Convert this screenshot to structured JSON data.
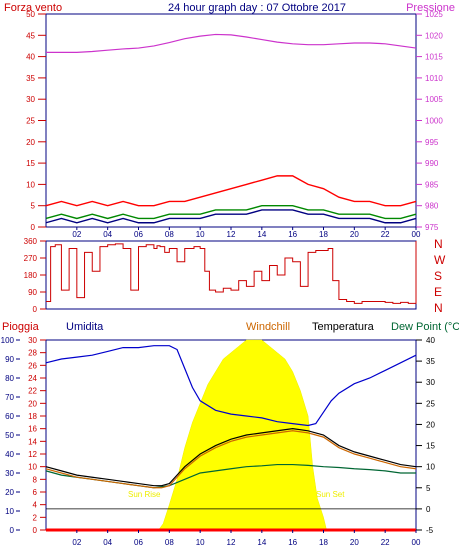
{
  "chart_data": [
    {
      "type": "line",
      "title": "24 hour graph day : 07 Ottobre 2017",
      "left_label": "Forza vento",
      "right_label": "Pressione",
      "yleft_ticks": [
        "0",
        "5",
        "10",
        "15",
        "20",
        "25",
        "30",
        "35",
        "40",
        "45",
        "50"
      ],
      "yright_ticks": [
        "975",
        "980",
        "985",
        "990",
        "995",
        "1000",
        "1005",
        "1010",
        "1015",
        "1020",
        "1025"
      ],
      "xticks": [
        "02",
        "04",
        "06",
        "08",
        "10",
        "12",
        "14",
        "16",
        "18",
        "20",
        "22",
        "00"
      ],
      "ylim_left": [
        0,
        50
      ],
      "ylim_right": [
        975,
        1025
      ],
      "series": [
        {
          "name": "Pressione",
          "color": "#cc33cc",
          "x": [
            0,
            1,
            2,
            3,
            4,
            5,
            6,
            7,
            8,
            9,
            10,
            11,
            12,
            13,
            14,
            15,
            16,
            17,
            18,
            19,
            20,
            21,
            22,
            23,
            24
          ],
          "values": [
            1016,
            1016,
            1016,
            1016.2,
            1016.5,
            1016.8,
            1017,
            1017.5,
            1018.3,
            1019.2,
            1019.8,
            1020.2,
            1020.1,
            1019.6,
            1019,
            1018.4,
            1018,
            1017.8,
            1017.8,
            1018,
            1018.2,
            1018.2,
            1018,
            1017.5,
            1017
          ]
        },
        {
          "name": "",
          "color": "#ff0000",
          "x": [
            0,
            1,
            2,
            3,
            4,
            5,
            6,
            7,
            8,
            9,
            10,
            11,
            12,
            13,
            14,
            15,
            16,
            17,
            18,
            19,
            20,
            21,
            22,
            23,
            24
          ],
          "values": [
            5,
            6,
            5,
            6,
            5,
            6,
            5,
            5,
            6,
            6,
            7,
            8,
            9,
            10,
            11,
            12,
            12,
            10,
            9,
            7,
            6,
            6,
            5,
            5,
            6
          ]
        },
        {
          "name": "",
          "color": "#008800",
          "x": [
            0,
            1,
            2,
            3,
            4,
            5,
            6,
            7,
            8,
            9,
            10,
            11,
            12,
            13,
            14,
            15,
            16,
            17,
            18,
            19,
            20,
            21,
            22,
            23,
            24
          ],
          "values": [
            2,
            3,
            2,
            3,
            2,
            3,
            2,
            2,
            3,
            3,
            3,
            4,
            4,
            4,
            5,
            5,
            5,
            4,
            4,
            3,
            3,
            3,
            2,
            2,
            3
          ]
        },
        {
          "name": "",
          "color": "#000080",
          "x": [
            0,
            1,
            2,
            3,
            4,
            5,
            6,
            7,
            8,
            9,
            10,
            11,
            12,
            13,
            14,
            15,
            16,
            17,
            18,
            19,
            20,
            21,
            22,
            23,
            24
          ],
          "values": [
            1,
            2,
            1,
            2,
            1,
            2,
            1,
            1,
            2,
            2,
            2,
            3,
            3,
            3,
            4,
            4,
            4,
            3,
            3,
            2,
            2,
            2,
            1,
            1,
            2
          ]
        }
      ]
    },
    {
      "type": "line",
      "yticks": [
        "0",
        "90",
        "180",
        "270",
        "360"
      ],
      "ylim": [
        0,
        360
      ],
      "xticks": [
        "02",
        "04",
        "06",
        "08",
        "10",
        "12",
        "14",
        "16",
        "18",
        "20",
        "22",
        "00"
      ],
      "compass": [
        "N",
        "W",
        "S",
        "E",
        "N"
      ],
      "series": [
        {
          "name": "",
          "color": "#cc0000",
          "x": [
            0,
            0.3,
            0.6,
            1,
            1.5,
            2,
            2.5,
            3,
            3.5,
            4,
            4.5,
            5,
            5.5,
            6,
            6.5,
            7,
            7.2,
            7.4,
            7.7,
            8,
            8.5,
            9,
            9.3,
            9.6,
            10,
            10.3,
            10.6,
            11,
            11.5,
            12,
            12.5,
            13,
            13.5,
            14,
            14.5,
            15,
            15.5,
            16,
            16.5,
            17,
            17.5,
            18,
            18.3,
            18.6,
            19,
            19.5,
            20,
            20.5,
            21,
            21.5,
            22,
            22.5,
            23,
            23.5,
            24
          ],
          "values": [
            40,
            330,
            340,
            100,
            320,
            60,
            300,
            200,
            330,
            340,
            345,
            320,
            100,
            330,
            340,
            320,
            335,
            330,
            300,
            320,
            250,
            320,
            320,
            330,
            320,
            200,
            100,
            90,
            110,
            100,
            150,
            120,
            200,
            150,
            230,
            180,
            270,
            250,
            120,
            300,
            310,
            310,
            320,
            150,
            50,
            40,
            30,
            40,
            40,
            40,
            35,
            30,
            35,
            30,
            360
          ]
        }
      ]
    },
    {
      "type": "line",
      "legend": [
        "Pioggia",
        "Umidita",
        "Windchill",
        "Temperatura",
        "Dew Point (°C"
      ],
      "y1_ticks": [
        "0",
        "10",
        "20",
        "30",
        "40",
        "50",
        "60",
        "70",
        "80",
        "90",
        "100"
      ],
      "y2_ticks": [
        "0",
        "2",
        "4",
        "6",
        "8",
        "10",
        "12",
        "14",
        "16",
        "18",
        "20",
        "22",
        "24",
        "26",
        "28",
        "30"
      ],
      "yright_ticks": [
        "-5",
        "0",
        "5",
        "10",
        "15",
        "20",
        "25",
        "30",
        "35",
        "40"
      ],
      "xticks": [
        "02",
        "04",
        "06",
        "08",
        "10",
        "12",
        "14",
        "16",
        "18",
        "20",
        "22",
        "00"
      ],
      "annotations": [
        "Sun Rise",
        "Sun Set"
      ],
      "ylim_right": [
        -5,
        40
      ],
      "series": [
        {
          "name": "Umidita",
          "color": "#0000cc",
          "axis": "humidity",
          "x": [
            0,
            1,
            2,
            3,
            4,
            5,
            6,
            7,
            8,
            8.5,
            9,
            9.5,
            10,
            11,
            12,
            13,
            14,
            15,
            16,
            17,
            17.5,
            18,
            18.5,
            19,
            20,
            21,
            22,
            23,
            24
          ],
          "values": [
            88,
            90,
            91,
            92,
            94,
            96,
            96,
            97,
            97,
            95,
            85,
            75,
            68,
            63,
            61,
            60,
            59,
            57,
            56,
            55,
            56,
            62,
            68,
            72,
            77,
            80,
            84,
            88,
            92
          ]
        },
        {
          "name": "Temperatura",
          "color": "#000000",
          "axis": "temp",
          "x": [
            0,
            1,
            2,
            3,
            4,
            5,
            6,
            7,
            7.5,
            8,
            8.5,
            9,
            10,
            11,
            12,
            13,
            14,
            15,
            16,
            17,
            18,
            19,
            20,
            21,
            22,
            23,
            24
          ],
          "values": [
            10,
            9,
            8,
            7.5,
            7,
            6.5,
            6,
            5.5,
            5.5,
            6,
            8,
            10,
            13,
            15,
            16.5,
            17.5,
            18,
            18.5,
            19,
            18.5,
            17.5,
            15,
            13.5,
            12.5,
            11.5,
            10.5,
            10
          ]
        },
        {
          "name": "Dew Point (°C",
          "color": "#006633",
          "axis": "temp",
          "x": [
            0,
            1,
            2,
            3,
            4,
            5,
            6,
            7,
            8,
            9,
            10,
            11,
            12,
            13,
            14,
            15,
            16,
            17,
            18,
            19,
            20,
            21,
            22,
            23,
            24
          ],
          "values": [
            9,
            8,
            7.5,
            7,
            6.5,
            6,
            5.5,
            5,
            5.5,
            7,
            8.5,
            9,
            9.5,
            10,
            10.2,
            10.5,
            10.5,
            10.3,
            10,
            9.8,
            9.5,
            9.3,
            9,
            8.5,
            8.5
          ]
        },
        {
          "name": "Windchill",
          "color": "#cc6600",
          "axis": "temp",
          "x": [
            0,
            1,
            2,
            3,
            4,
            5,
            6,
            7,
            7.5,
            8,
            8.5,
            9,
            10,
            11,
            12,
            13,
            14,
            15,
            16,
            17,
            18,
            19,
            20,
            21,
            22,
            23,
            24
          ],
          "values": [
            9.5,
            8.5,
            7.5,
            7,
            6.5,
            6,
            5.5,
            5,
            5,
            5.5,
            7.5,
            9.5,
            12.5,
            14.5,
            16,
            17,
            17.5,
            18,
            18.5,
            18,
            17,
            14.5,
            13,
            12,
            11,
            10,
            9.5
          ]
        },
        {
          "name": "",
          "color": "#ffff00",
          "axis": "solar",
          "x": [
            0,
            7.3,
            7.6,
            8,
            8.5,
            9,
            9.5,
            10,
            10.5,
            11,
            11.5,
            12,
            12.5,
            13,
            13.5,
            14,
            14.5,
            15,
            15.5,
            16,
            16.5,
            17,
            17.3,
            17.6,
            18,
            18.2,
            24
          ],
          "values": [
            0,
            0,
            1,
            4,
            8,
            13,
            17,
            20,
            23,
            25,
            27,
            28,
            29,
            30,
            30,
            30,
            29,
            28,
            27,
            25,
            22,
            18,
            10,
            5,
            2,
            0,
            0
          ]
        },
        {
          "name": "",
          "color": "#ff0000",
          "axis": "rain",
          "x": [
            0,
            24
          ],
          "values": [
            0,
            0
          ]
        }
      ]
    }
  ]
}
